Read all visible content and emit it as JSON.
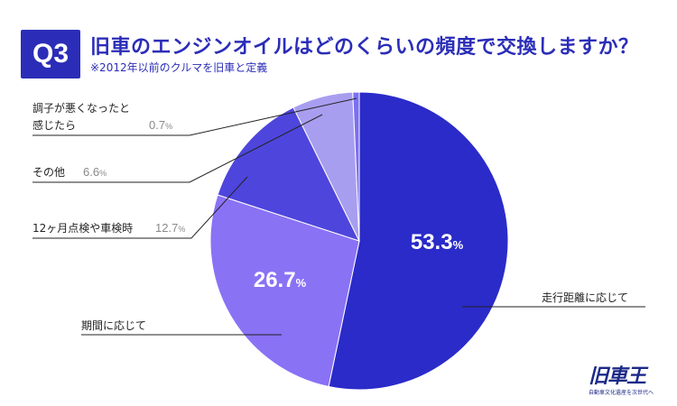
{
  "header": {
    "badge": "Q3",
    "title": "旧車のエンジンオイルはどのくらいの頻度で交換しますか？",
    "subtitle": "※2012年以前のクルマを旧車と定義"
  },
  "logo": {
    "main": "旧車王",
    "sub": "自動車文化遺産を次世代へ"
  },
  "colors": {
    "accent": "#2b2db8",
    "slices": [
      "#2b2bc9",
      "#8a72f5",
      "#4e46dc",
      "#a89ef0",
      "#7b6ff0"
    ]
  },
  "chart_data": {
    "type": "pie",
    "slices": [
      {
        "label": "走行距離に応じて",
        "value": 53.3,
        "display": "53.3",
        "color": "#2b2bc9"
      },
      {
        "label": "期間に応じて",
        "value": 26.7,
        "display": "26.7",
        "color": "#8a72f5"
      },
      {
        "label": "12ヶ月点検や車検時",
        "value": 12.7,
        "display": "12.7",
        "color": "#4e46dc"
      },
      {
        "label": "その他",
        "value": 6.6,
        "display": "6.6",
        "color": "#a89ef0"
      },
      {
        "label": "調子が悪くなったと感じたら",
        "label_lines": [
          "調子が悪くなったと",
          "感じたら"
        ],
        "value": 0.7,
        "display": "0.7",
        "color": "#7b6ff0"
      }
    ],
    "unit": "%"
  }
}
